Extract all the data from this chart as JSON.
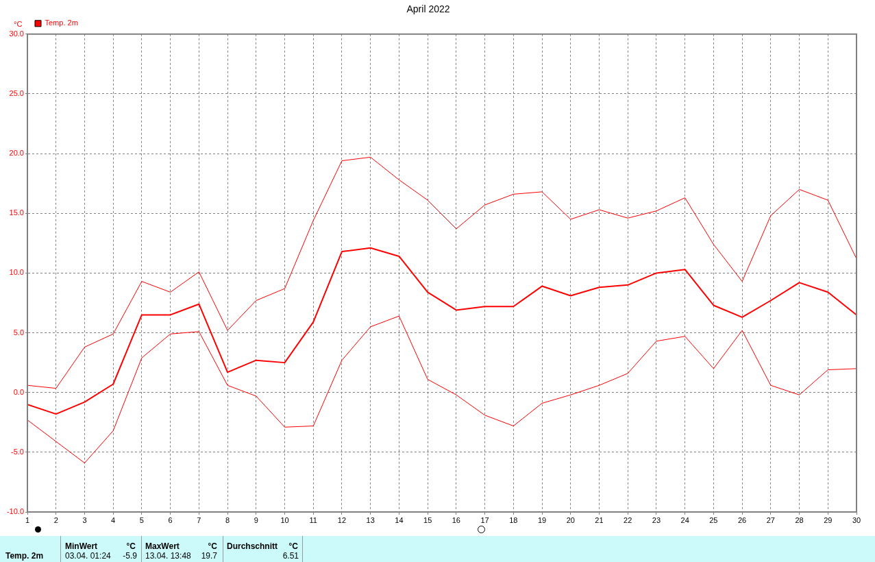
{
  "chart_data": {
    "type": "line",
    "title": "April 2022",
    "ylabel": "°C",
    "x": [
      1,
      2,
      3,
      4,
      5,
      6,
      7,
      8,
      9,
      10,
      11,
      12,
      13,
      14,
      15,
      16,
      17,
      18,
      19,
      20,
      21,
      22,
      23,
      24,
      25,
      26,
      27,
      28,
      29,
      30
    ],
    "xlim": [
      1,
      30
    ],
    "xticks": [
      1,
      2,
      3,
      4,
      5,
      6,
      7,
      8,
      9,
      10,
      11,
      12,
      13,
      14,
      15,
      16,
      17,
      18,
      19,
      20,
      21,
      22,
      23,
      24,
      25,
      26,
      27,
      28,
      29,
      30
    ],
    "ylim": [
      -10,
      30
    ],
    "yticks": [
      {
        "value": -10,
        "label": "-10.0"
      },
      {
        "value": -5,
        "label": "-5.0"
      },
      {
        "value": 0,
        "label": "0.0"
      },
      {
        "value": 5,
        "label": "5.0"
      },
      {
        "value": 10,
        "label": "10.0"
      },
      {
        "value": 15,
        "label": "15.0"
      },
      {
        "value": 20,
        "label": "20.0"
      },
      {
        "value": 25,
        "label": "25.0"
      },
      {
        "value": 30,
        "label": "30.0"
      }
    ],
    "grid": true,
    "legend": "top left",
    "marker": "none",
    "line_style": "solid",
    "series": [
      {
        "color": "#ff0000",
        "values": [
          0.6,
          0.35,
          3.8,
          4.9,
          9.3,
          8.4,
          10.1,
          5.2,
          7.7,
          8.7,
          14.4,
          19.4,
          19.7,
          17.8,
          16.1,
          13.7,
          15.7,
          16.6,
          16.8,
          14.5,
          15.3,
          14.6,
          15.2,
          16.3,
          12.4,
          9.3,
          14.8,
          17.0,
          16.1,
          11.2
        ]
      },
      {
        "name": "Temp. 2m",
        "color": "#ff0000",
        "values": [
          -1.0,
          -1.8,
          -0.8,
          0.7,
          6.5,
          6.5,
          7.4,
          1.7,
          2.7,
          2.5,
          5.9,
          11.8,
          12.1,
          11.4,
          8.4,
          6.9,
          7.2,
          7.2,
          8.9,
          8.1,
          8.8,
          9.0,
          10.0,
          10.3,
          7.3,
          6.3,
          7.7,
          9.2,
          8.4,
          6.5
        ]
      },
      {
        "color": "#ff0000",
        "values": [
          -2.3,
          -4.1,
          -5.9,
          -3.2,
          2.9,
          4.9,
          5.1,
          0.6,
          -0.3,
          -2.9,
          -2.8,
          2.7,
          5.5,
          6.4,
          1.1,
          -0.2,
          -1.9,
          -2.8,
          -0.9,
          -0.2,
          0.6,
          1.6,
          4.3,
          4.7,
          2.0,
          5.2,
          0.6,
          -0.2,
          1.9,
          2.0
        ]
      }
    ],
    "annotations": [
      "Temp. 2m",
      "MinWert",
      "°C",
      "03.04.  01:24",
      "-5.9",
      "MaxWert",
      "°C",
      "13.04.  13:48",
      "19.7",
      "Durchschnitt",
      "°C",
      "6.51"
    ]
  }
}
